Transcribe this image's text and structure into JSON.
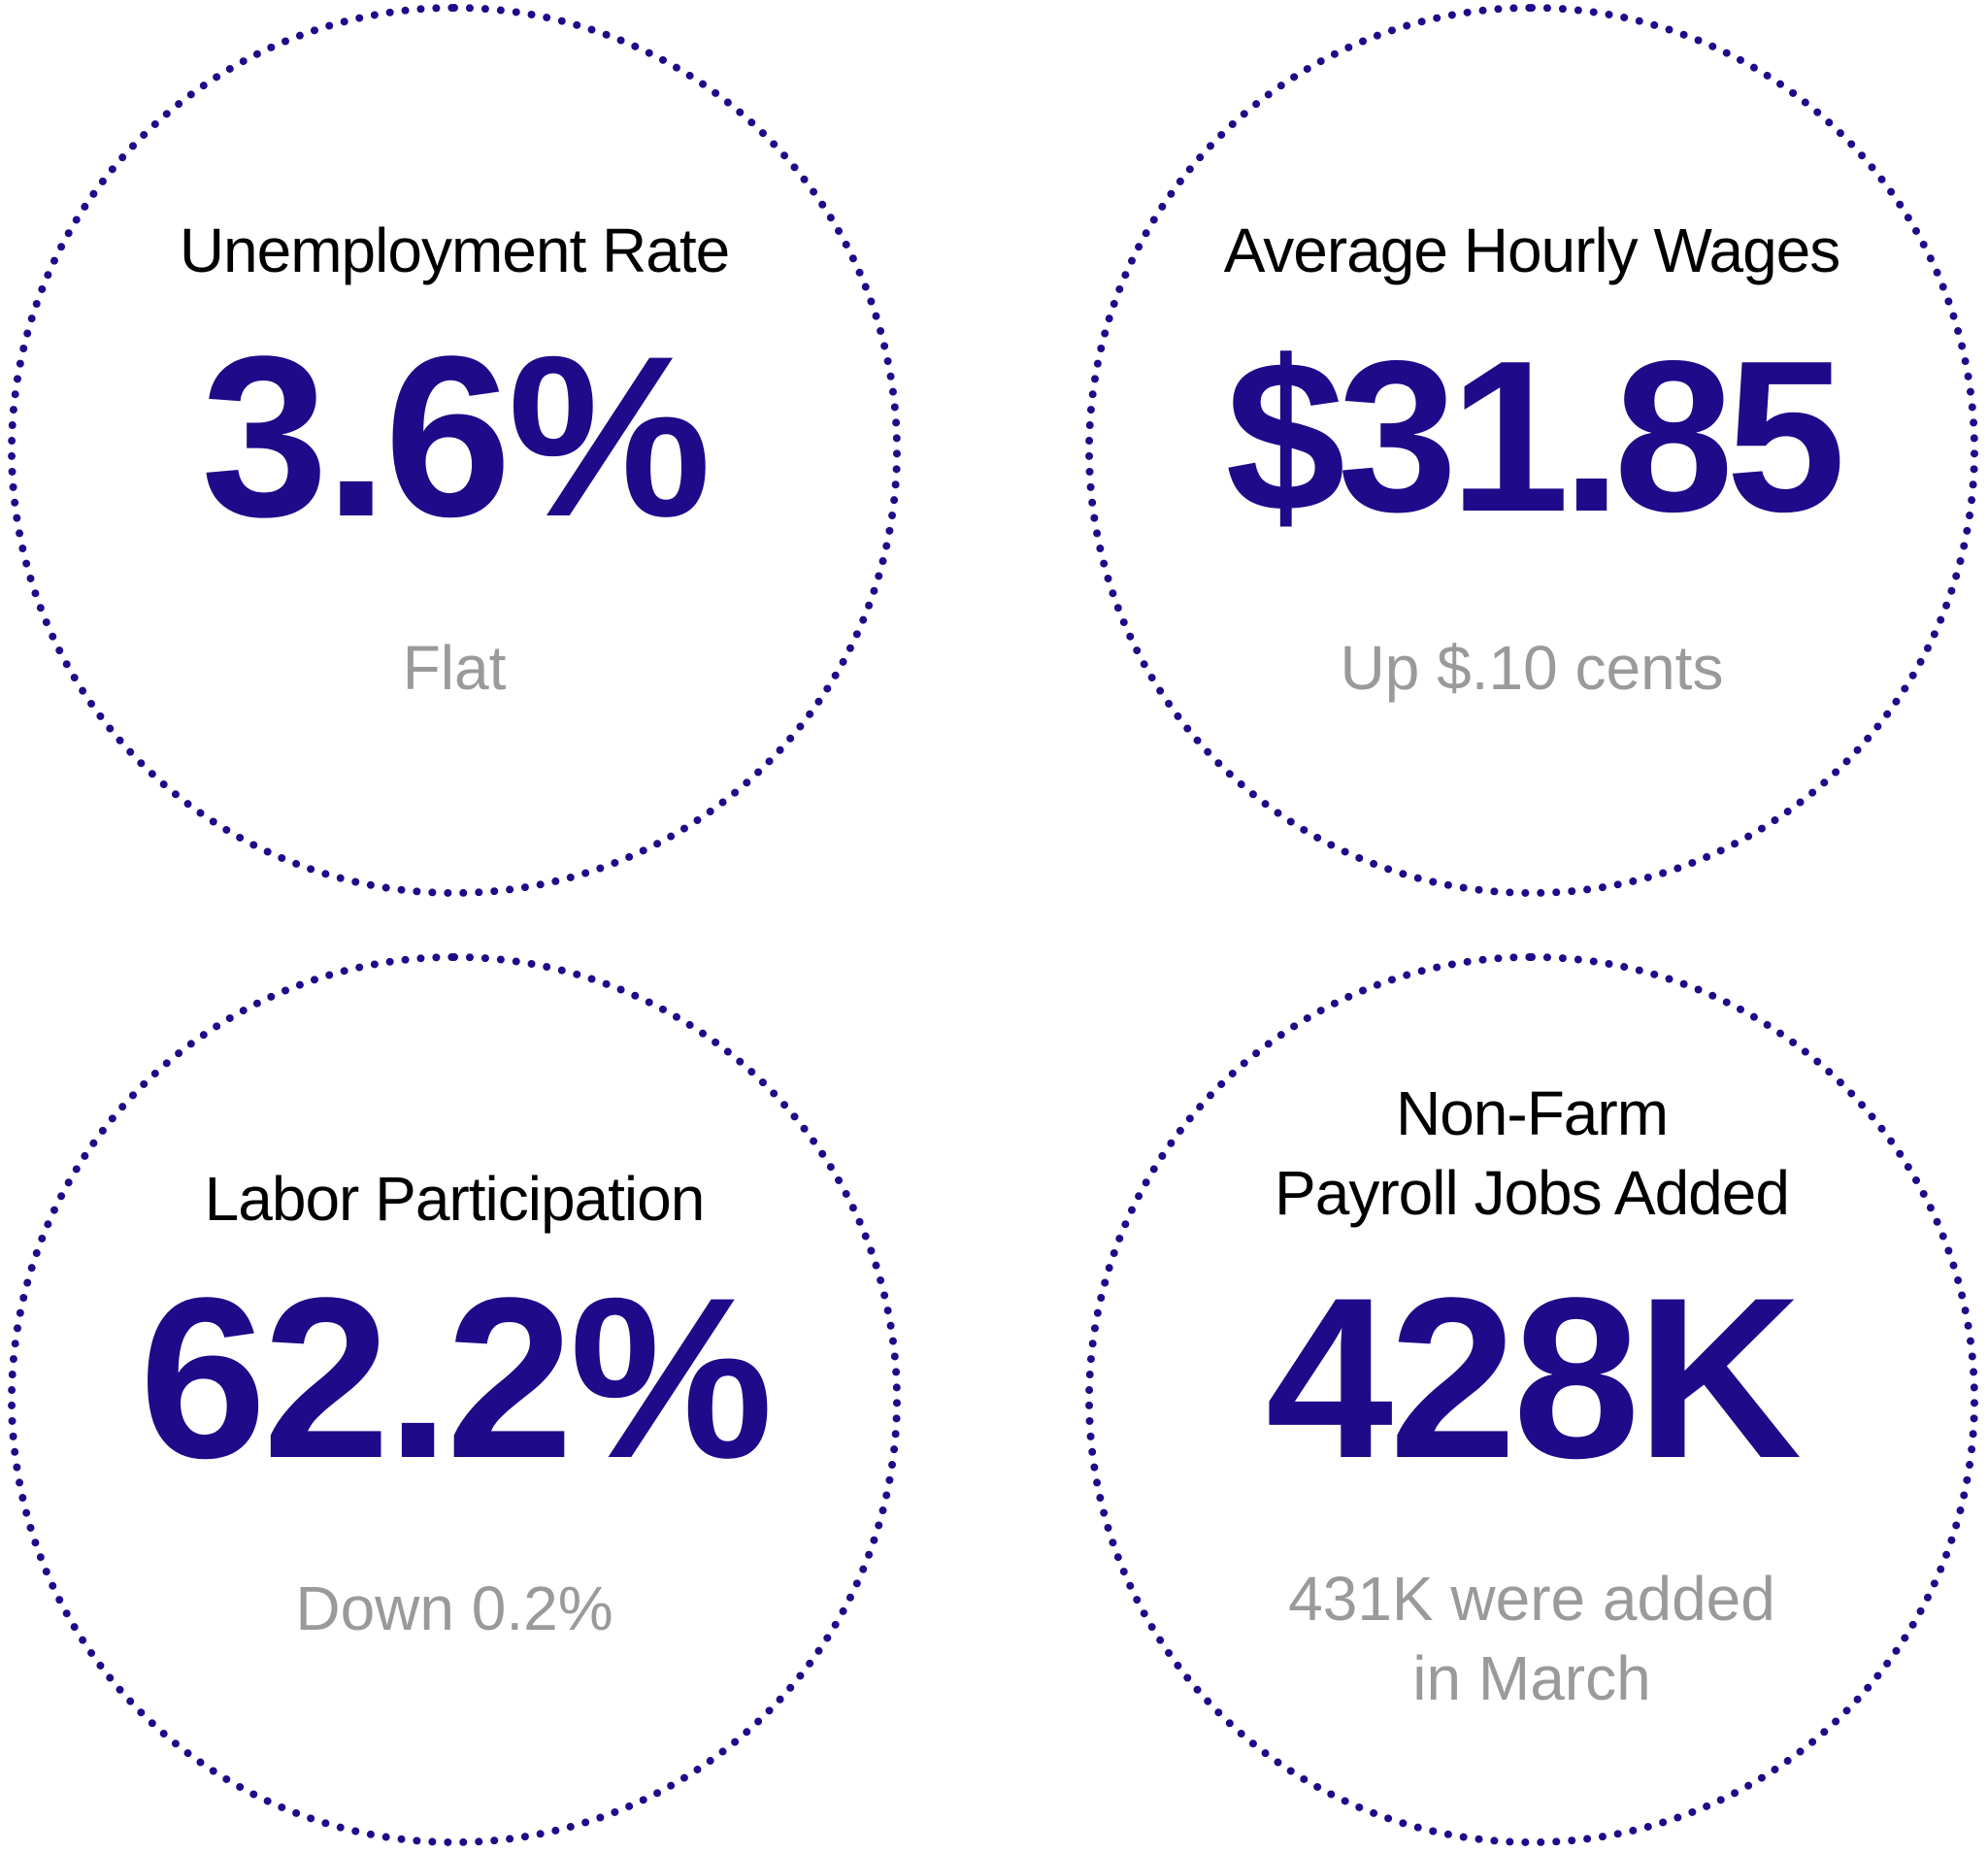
{
  "accent_color": "#1f0a8a",
  "note_color": "#9a9a9a",
  "stats": [
    {
      "title": [
        "Unemployment Rate"
      ],
      "value": "3.6%",
      "note": [
        "Flat"
      ]
    },
    {
      "title": [
        "Average Hourly Wages"
      ],
      "value": "$31.85",
      "note": [
        "Up $.10 cents"
      ]
    },
    {
      "title": [
        "Labor Participation"
      ],
      "value": "62.2%",
      "note": [
        "Down 0.2%"
      ]
    },
    {
      "title": [
        "Non-Farm",
        "Payroll Jobs Added"
      ],
      "value": "428K",
      "note": [
        "431K were added",
        "in March"
      ]
    }
  ]
}
